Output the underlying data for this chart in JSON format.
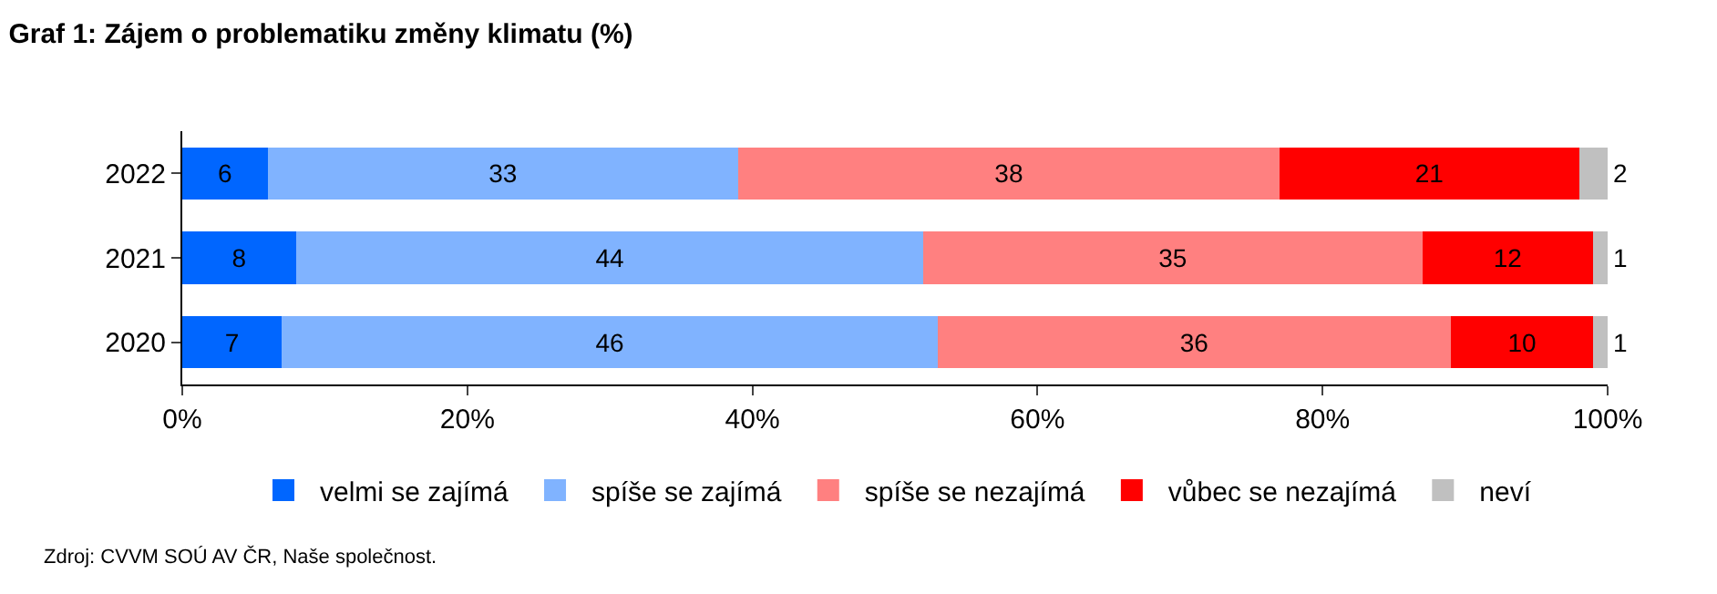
{
  "chart_data": {
    "type": "bar",
    "orientation": "horizontal",
    "stacked": true,
    "title": "Graf 1: Zájem o problematiku změny klimatu (%)",
    "categories": [
      "2022",
      "2021",
      "2020"
    ],
    "series": [
      {
        "name": "velmi se zajímá",
        "color": "#0066ff",
        "values": [
          6,
          8,
          7
        ]
      },
      {
        "name": "spíše se zajímá",
        "color": "#80b3ff",
        "values": [
          33,
          44,
          46
        ]
      },
      {
        "name": "spíše se nezajímá",
        "color": "#ff8080",
        "values": [
          38,
          35,
          36
        ]
      },
      {
        "name": "vůbec se nezajímá",
        "color": "#ff0000",
        "values": [
          21,
          12,
          10
        ]
      },
      {
        "name": "neví",
        "color": "#c0c0c0",
        "values": [
          2,
          1,
          1
        ]
      }
    ],
    "data_labels": true,
    "xlim": [
      0,
      100
    ],
    "xticks": [
      {
        "value": 0,
        "label": "0%"
      },
      {
        "value": 20,
        "label": "20%"
      },
      {
        "value": 40,
        "label": "40%"
      },
      {
        "value": 60,
        "label": "60%"
      },
      {
        "value": 80,
        "label": "80%"
      },
      {
        "value": 100,
        "label": "100%"
      }
    ],
    "legend": "bottom",
    "annotations": [
      "Zdroj: CVVM SOÚ AV ČR, Naše společnost."
    ]
  }
}
